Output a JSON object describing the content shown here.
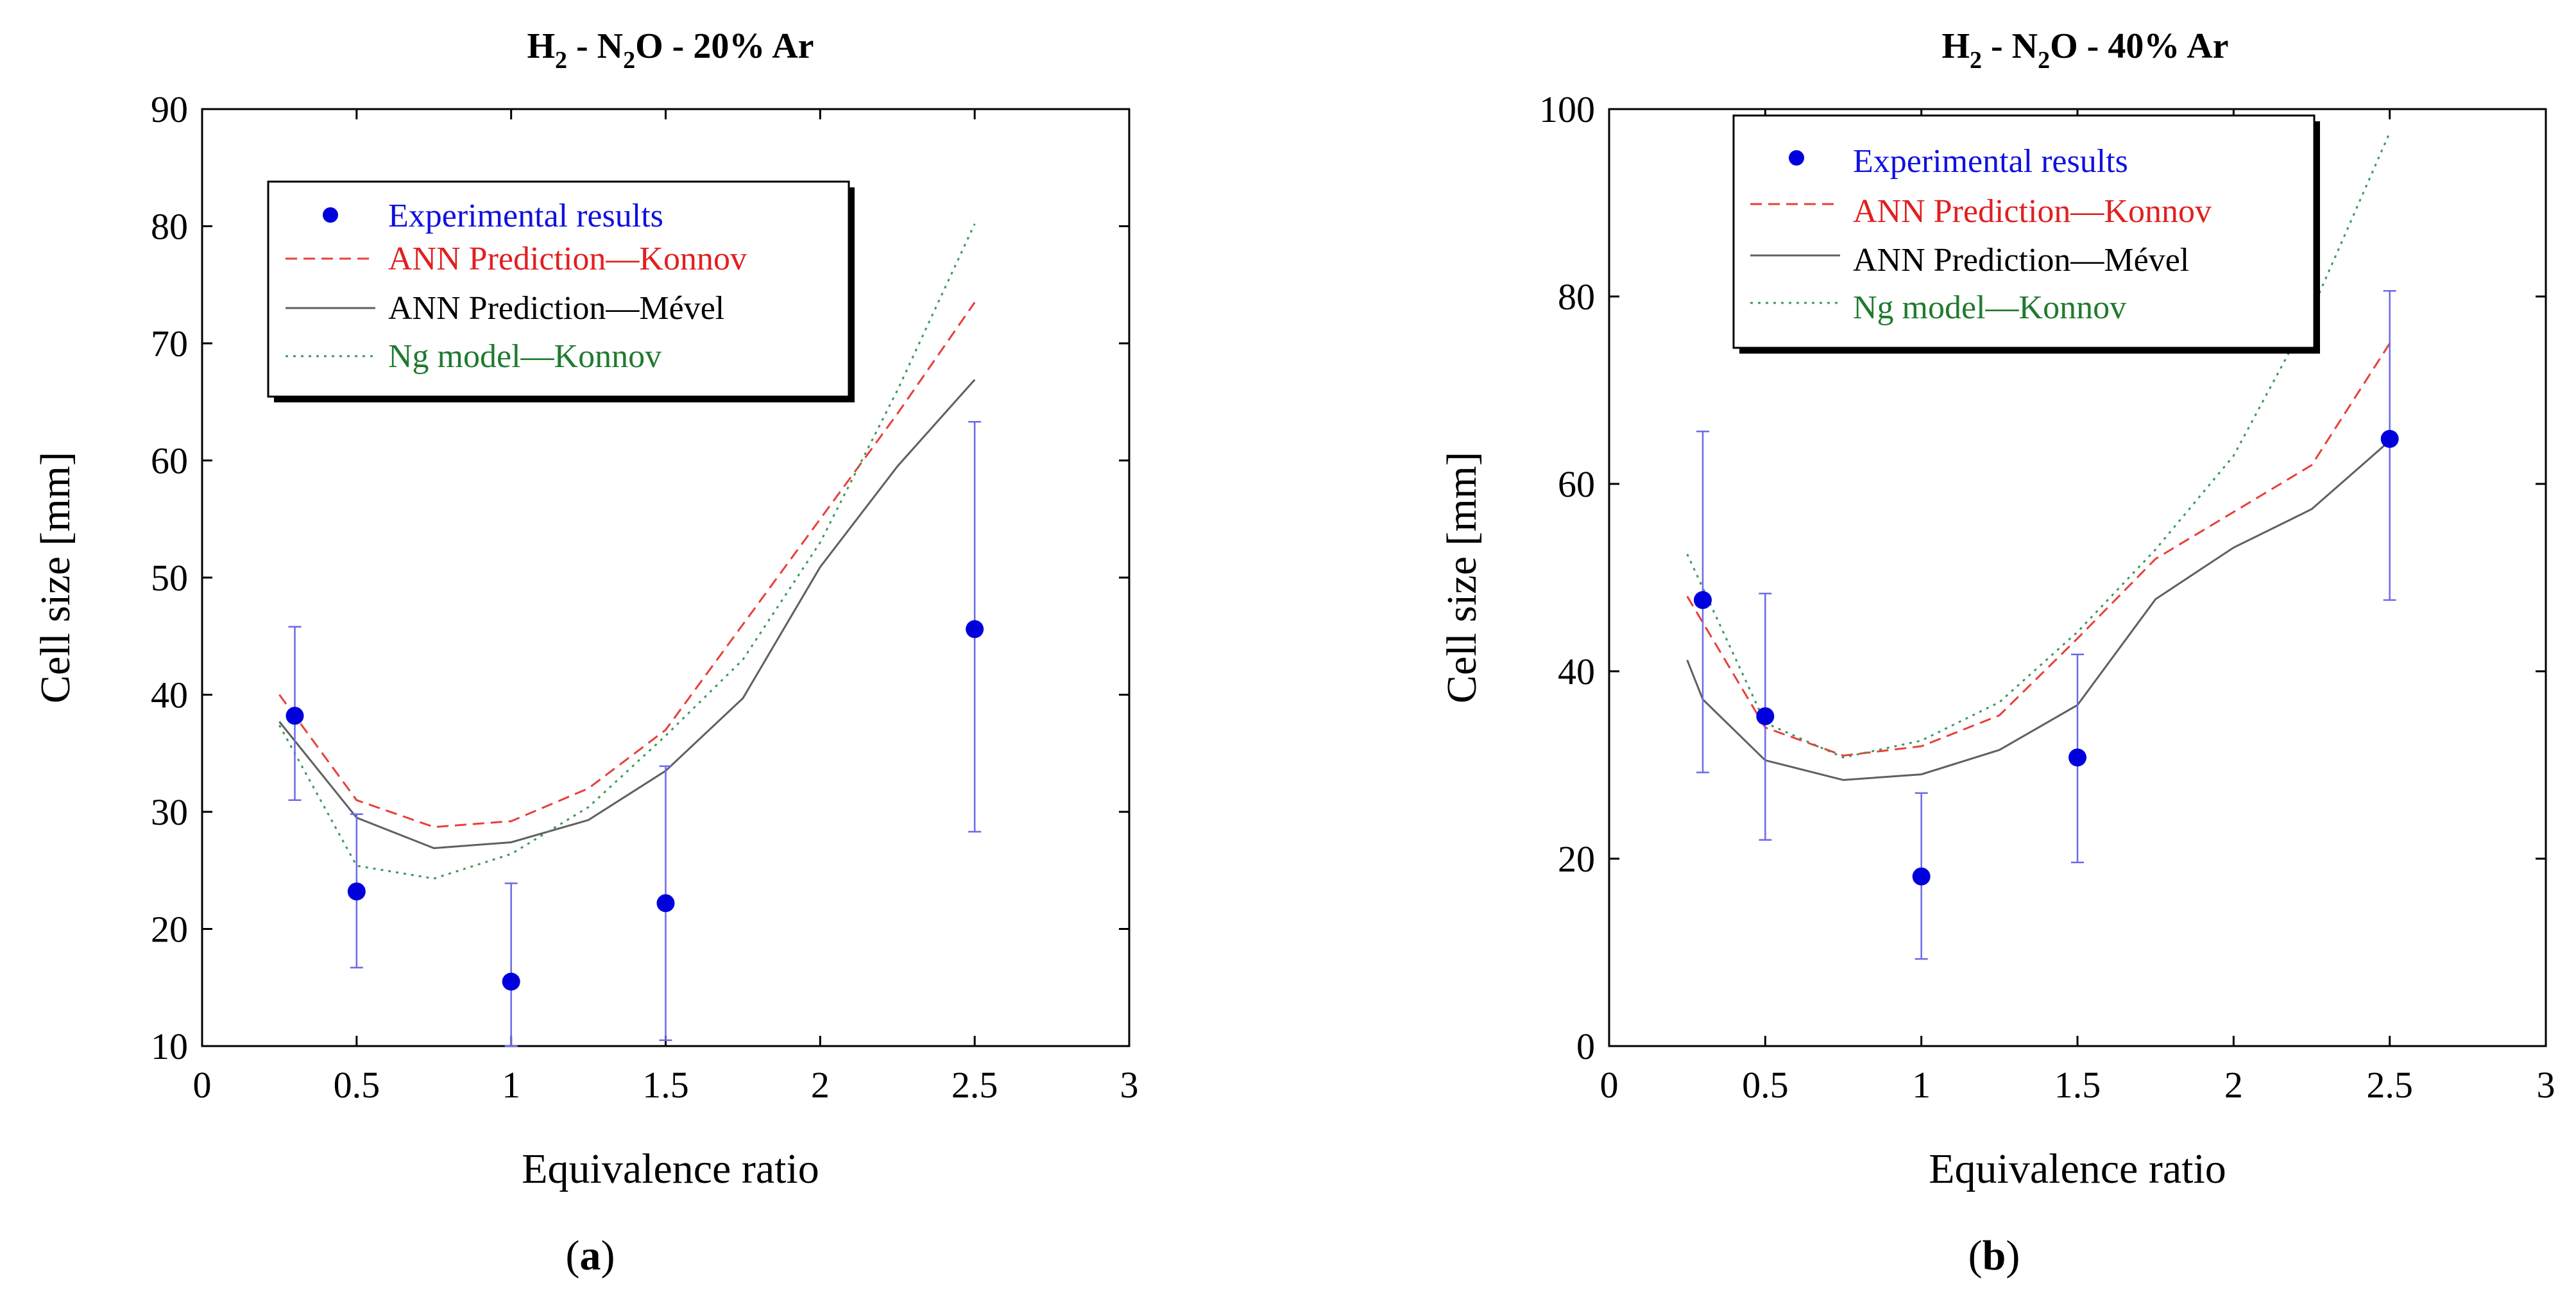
{
  "chart_data": [
    {
      "type": "scatter",
      "subfigure_label": "a",
      "title": {
        "h": "H",
        "h_sub": "2",
        "dash1": " - N",
        "n_sub": "2",
        "rest": "O - 20% Ar"
      },
      "xlabel": "Equivalence ratio",
      "ylabel": "Cell size [mm]",
      "xlim": [
        0,
        3
      ],
      "ylim": [
        10,
        90
      ],
      "xticks": [
        0,
        0.5,
        1,
        1.5,
        2,
        2.5,
        3
      ],
      "xtick_labels": [
        "0",
        "0.5",
        "1",
        "1.5",
        "2",
        "2.5",
        "3"
      ],
      "yticks": [
        10,
        20,
        30,
        40,
        50,
        60,
        70,
        80,
        90
      ],
      "ytick_labels": [
        "10",
        "20",
        "30",
        "40",
        "50",
        "60",
        "70",
        "80",
        "90"
      ],
      "grid": false,
      "legend_position": "top-left",
      "series": [
        {
          "name": "Experimental results",
          "kind": "errorbar-points",
          "color": "#0000dd",
          "x": [
            0.3,
            0.5,
            1.0,
            1.5,
            2.5
          ],
          "y": [
            38.2,
            23.2,
            15.5,
            22.2,
            45.6
          ],
          "ylow": [
            31.0,
            16.7,
            10.0,
            10.5,
            28.3
          ],
          "yhigh": [
            45.8,
            29.8,
            23.9,
            33.9,
            63.3
          ]
        },
        {
          "name": "ANN Prediction—Konnov",
          "kind": "line",
          "style": "dashed",
          "color": "#e8403a",
          "x": [
            0.25,
            0.5,
            0.75,
            1.0,
            1.25,
            1.5,
            1.75,
            2.0,
            2.25,
            2.5
          ],
          "y": [
            40.0,
            31.0,
            28.7,
            29.2,
            32.0,
            37.0,
            46.0,
            55.0,
            64.0,
            73.5
          ]
        },
        {
          "name": "ANN Prediction—Mével",
          "kind": "line",
          "style": "solid",
          "color": "#606060",
          "x": [
            0.25,
            0.5,
            0.75,
            1.0,
            1.25,
            1.5,
            1.75,
            2.0,
            2.25,
            2.5
          ],
          "y": [
            37.7,
            29.5,
            26.9,
            27.4,
            29.3,
            33.5,
            39.7,
            50.9,
            59.5,
            66.9
          ]
        },
        {
          "name": "Ng model—Konnov",
          "kind": "line",
          "style": "dotted",
          "color": "#3a9a5a",
          "x": [
            0.25,
            0.5,
            0.75,
            1.0,
            1.25,
            1.5,
            1.75,
            2.0,
            2.25,
            2.5
          ],
          "y": [
            37.4,
            25.4,
            24.3,
            26.4,
            30.4,
            36.5,
            43.0,
            53.0,
            66.0,
            80.2
          ]
        }
      ]
    },
    {
      "type": "scatter",
      "subfigure_label": "b",
      "title": {
        "h": "H",
        "h_sub": "2",
        "dash1": " - N",
        "n_sub": "2",
        "rest": "O - 40% Ar"
      },
      "xlabel": "Equivalence ratio",
      "ylabel": "Cell size [mm]",
      "xlim": [
        0,
        3
      ],
      "ylim": [
        0,
        100
      ],
      "xticks": [
        0,
        0.5,
        1,
        1.5,
        2,
        2.5,
        3
      ],
      "xtick_labels": [
        "0",
        "0.5",
        "1",
        "1.5",
        "2",
        "2.5",
        "3"
      ],
      "yticks": [
        0,
        20,
        40,
        60,
        80,
        100
      ],
      "ytick_labels": [
        "0",
        "20",
        "40",
        "60",
        "80",
        "100"
      ],
      "grid": false,
      "legend_position": "top-left",
      "series": [
        {
          "name": "Experimental results",
          "kind": "errorbar-points",
          "color": "#0000dd",
          "x": [
            0.3,
            0.5,
            1.0,
            1.5,
            2.5
          ],
          "y": [
            47.6,
            35.2,
            18.1,
            30.8,
            64.8
          ],
          "ylow": [
            29.2,
            22.0,
            9.3,
            19.6,
            47.6
          ],
          "yhigh": [
            65.6,
            48.3,
            27.0,
            41.8,
            80.6
          ]
        },
        {
          "name": "ANN Prediction—Konnov",
          "kind": "line",
          "style": "dashed",
          "color": "#e8403a",
          "x": [
            0.25,
            0.5,
            0.75,
            1.0,
            1.25,
            1.5,
            1.75,
            2.0,
            2.25,
            2.5
          ],
          "y": [
            48.0,
            34.0,
            31.0,
            32.0,
            35.3,
            43.5,
            52.0,
            57.0,
            62.0,
            75.0
          ]
        },
        {
          "name": "ANN Prediction—Mével",
          "kind": "line",
          "style": "solid",
          "color": "#606060",
          "x": [
            0.25,
            0.3,
            0.5,
            0.75,
            1.0,
            1.25,
            1.5,
            1.75,
            2.0,
            2.25,
            2.5
          ],
          "y": [
            41.2,
            37.0,
            30.5,
            28.4,
            29.0,
            31.6,
            36.4,
            47.7,
            53.2,
            57.3,
            64.6
          ]
        },
        {
          "name": "Ng model—Konnov",
          "kind": "line",
          "style": "dotted",
          "color": "#3a9a5a",
          "x": [
            0.25,
            0.5,
            0.75,
            1.0,
            1.25,
            1.5,
            1.75,
            2.0,
            2.25,
            2.5
          ],
          "y": [
            52.5,
            34.5,
            30.8,
            32.6,
            36.7,
            44.2,
            53.0,
            63.0,
            78.5,
            97.5
          ]
        }
      ]
    }
  ]
}
